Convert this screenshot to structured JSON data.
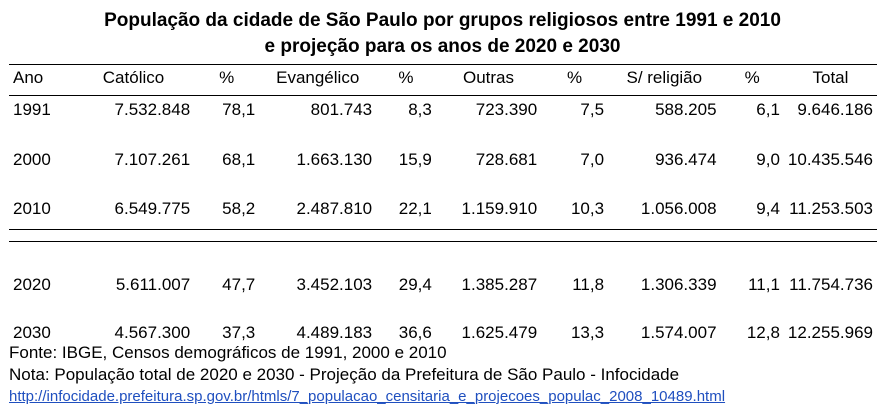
{
  "title": {
    "line1": "População da cidade de São Paulo por grupos religiosos entre 1991 e 2010",
    "line2": "e projeção para os anos de 2020 e 2030"
  },
  "table": {
    "headers": [
      "Ano",
      "Católico",
      "%",
      "Evangélico",
      "%",
      "Outras",
      "%",
      "S/ religião",
      "%",
      "Total"
    ],
    "rows_census": [
      [
        "1991",
        "7.532.848",
        "78,1",
        "801.743",
        "8,3",
        "723.390",
        "7,5",
        "588.205",
        "6,1",
        "9.646.186"
      ],
      [
        "2000",
        "7.107.261",
        "68,1",
        "1.663.130",
        "15,9",
        "728.681",
        "7,0",
        "936.474",
        "9,0",
        "10.435.546"
      ],
      [
        "2010",
        "6.549.775",
        "58,2",
        "2.487.810",
        "22,1",
        "1.159.910",
        "10,3",
        "1.056.008",
        "9,4",
        "11.253.503"
      ]
    ],
    "rows_projection": [
      [
        "2020",
        "5.611.007",
        "47,7",
        "3.452.103",
        "29,4",
        "1.385.287",
        "11,8",
        "1.306.339",
        "11,1",
        "11.754.736"
      ],
      [
        "2030",
        "4.567.300",
        "37,3",
        "4.489.183",
        "36,6",
        "1.625.479",
        "13,3",
        "1.574.007",
        "12,8",
        "12.255.969"
      ]
    ]
  },
  "notes": {
    "source": "Fonte: IBGE, Censos demográficos de 1991, 2000 e 2010",
    "note": "Nota: População total de 2020 e 2030 - Projeção da Prefeitura de São Paulo - Infocidade",
    "link": "http://infocidade.prefeitura.sp.gov.br/htmls/7_populacao_censitaria_e_projecoes_populac_2008_10489.html"
  }
}
